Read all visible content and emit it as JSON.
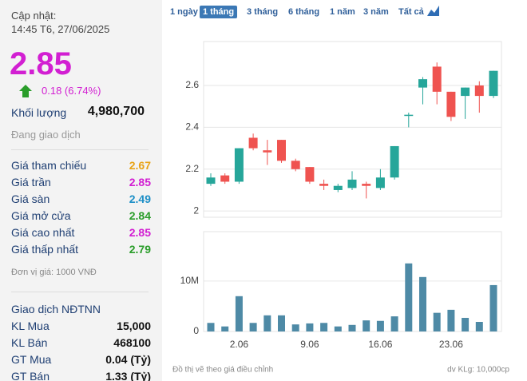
{
  "header": {
    "updated_label": "Cập nhật:",
    "updated_time": "14:45 T6, 27/06/2025",
    "price": "2.85",
    "change": "0.18 (6.74%)",
    "volume_label": "Khối lượng",
    "volume": "4,980,700",
    "status": "Đang giao dịch"
  },
  "prices": [
    {
      "label": "Giá tham chiếu",
      "value": "2.67",
      "color": "#e8a317"
    },
    {
      "label": "Giá trần",
      "value": "2.85",
      "color": "#d21fd2"
    },
    {
      "label": "Giá sàn",
      "value": "2.49",
      "color": "#1d8fc7"
    },
    {
      "label": "Giá mở cửa",
      "value": "2.84",
      "color": "#2a9d2a"
    },
    {
      "label": "Giá cao nhất",
      "value": "2.85",
      "color": "#d21fd2"
    },
    {
      "label": "Giá thấp nhất",
      "value": "2.79",
      "color": "#2a9d2a"
    }
  ],
  "unit_note": "Đơn vị giá: 1000 VNĐ",
  "foreign": {
    "title": "Giao dịch NĐTNN",
    "rows": [
      [
        "KL Mua",
        "15,000"
      ],
      [
        "KL Bán",
        "468100"
      ],
      [
        "GT Mua",
        "0.04 (Tỷ)"
      ],
      [
        "GT Bán",
        "1.33 (Tỷ)"
      ]
    ]
  },
  "tabs": [
    "1 ngày",
    "1 tháng",
    "3 tháng",
    "6 tháng",
    "1 năm",
    "3 năm",
    "Tất cả"
  ],
  "active_tab": 1,
  "footer": {
    "note": "Đồ thị vẽ theo giá điều chỉnh",
    "unit": "dv KLg: 10,000cp"
  },
  "chart_data": [
    {
      "type": "candlestick",
      "categories": [
        null,
        null,
        "2.06",
        null,
        null,
        null,
        null,
        "9.06",
        null,
        null,
        null,
        null,
        "16.06",
        null,
        null,
        null,
        null,
        "23.06",
        null,
        null,
        null
      ],
      "open": [
        2.13,
        2.17,
        2.14,
        2.35,
        2.29,
        2.34,
        2.24,
        2.21,
        2.13,
        2.1,
        2.11,
        2.13,
        2.11,
        2.16,
        2.46,
        2.59,
        2.69,
        2.57,
        2.55,
        2.6,
        2.55
      ],
      "high": [
        2.18,
        2.18,
        2.3,
        2.37,
        2.34,
        2.34,
        2.25,
        2.21,
        2.15,
        2.13,
        2.19,
        2.14,
        2.2,
        2.31,
        2.47,
        2.64,
        2.71,
        2.57,
        2.59,
        2.62,
        2.67
      ],
      "low": [
        2.12,
        2.13,
        2.13,
        2.29,
        2.22,
        2.23,
        2.19,
        2.13,
        2.1,
        2.09,
        2.1,
        2.06,
        2.1,
        2.15,
        2.4,
        2.51,
        2.51,
        2.43,
        2.44,
        2.47,
        2.54
      ],
      "close": [
        2.16,
        2.14,
        2.3,
        2.3,
        2.28,
        2.24,
        2.2,
        2.14,
        2.12,
        2.12,
        2.15,
        2.12,
        2.16,
        2.31,
        2.46,
        2.63,
        2.57,
        2.45,
        2.59,
        2.55,
        2.67
      ],
      "up_color": "#26a69a",
      "down_color": "#ef5350",
      "ylim": [
        1.97,
        2.81
      ],
      "yticks": [
        2,
        2.2,
        2.4,
        2.6
      ],
      "grid": true
    },
    {
      "type": "bar",
      "categories": [
        null,
        null,
        "2.06",
        null,
        null,
        null,
        null,
        "9.06",
        null,
        null,
        null,
        null,
        "16.06",
        null,
        null,
        null,
        null,
        "23.06",
        null,
        null,
        null
      ],
      "values": [
        1700000,
        1000000,
        7000000,
        1700000,
        3200000,
        3200000,
        1400000,
        1600000,
        1700000,
        1000000,
        1300000,
        2200000,
        2100000,
        3000000,
        13500000,
        10800000,
        3700000,
        4300000,
        2700000,
        1900000,
        9200000
      ],
      "color": "#4e8aa6",
      "ylim": [
        0,
        19800000
      ],
      "yticks": [
        0,
        {
          "value": 10000000,
          "label": "10M"
        }
      ],
      "grid": true
    }
  ]
}
